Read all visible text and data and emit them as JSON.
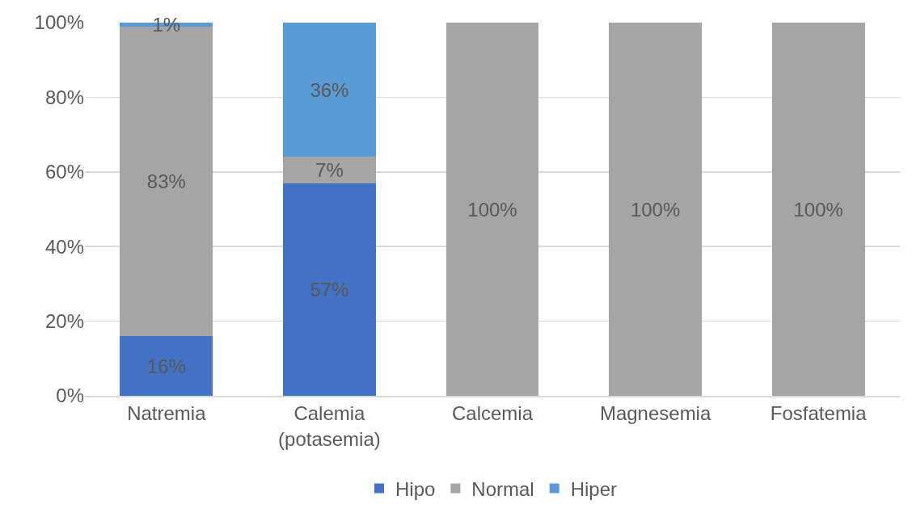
{
  "chart_data": {
    "type": "bar",
    "stacked": true,
    "categories": [
      "Natremia",
      "Calemia\n(potasemia)",
      "Calcemia",
      "Magnesemia",
      "Fosfatemia"
    ],
    "series": [
      {
        "name": "Hipo",
        "color": "#4472c4",
        "values": [
          16,
          57,
          0,
          0,
          0
        ],
        "value_labels": [
          "16%",
          "57%",
          null,
          null,
          null
        ]
      },
      {
        "name": "Normal",
        "color": "#a5a5a5",
        "values": [
          83,
          7,
          100,
          100,
          100
        ],
        "value_labels": [
          "83%",
          "7%",
          "100%",
          "100%",
          "100%"
        ]
      },
      {
        "name": "Hiper",
        "color": "#5b9bd5",
        "values": [
          1,
          36,
          0,
          0,
          0
        ],
        "value_labels": [
          "1%",
          "36%",
          null,
          null,
          null
        ]
      }
    ],
    "ylim": [
      0,
      100
    ],
    "yticks": [
      {
        "value": 0,
        "label": "0%"
      },
      {
        "value": 20,
        "label": "20%"
      },
      {
        "value": 40,
        "label": "40%"
      },
      {
        "value": 60,
        "label": "60%"
      },
      {
        "value": 80,
        "label": "80%"
      },
      {
        "value": 100,
        "label": "100%"
      }
    ],
    "grid": "y",
    "legend": "bottom"
  }
}
